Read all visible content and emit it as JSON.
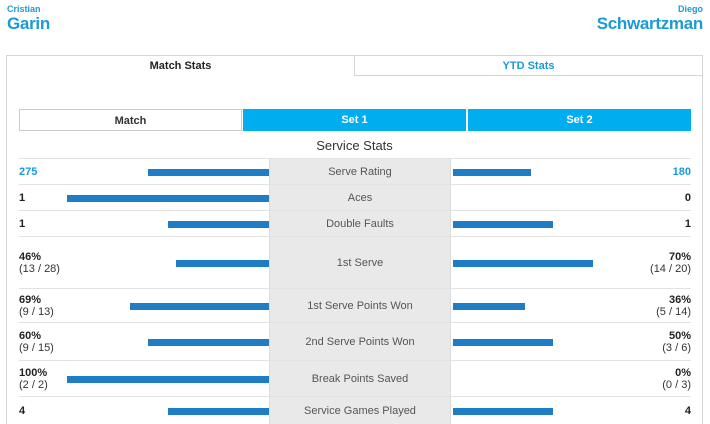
{
  "players": {
    "left": {
      "first": "Cristian",
      "last": "Garin"
    },
    "right": {
      "first": "Diego",
      "last": "Schwartzman"
    }
  },
  "top_tabs": [
    "Match Stats",
    "YTD Stats"
  ],
  "set_tabs": [
    "Match",
    "Set 1",
    "Set 2"
  ],
  "section_title": "Service Stats",
  "rows": [
    {
      "label": "Serve Rating",
      "left": {
        "value": "275",
        "sub": ""
      },
      "right": {
        "value": "180",
        "sub": ""
      },
      "left_fill": 0.6,
      "right_fill": 0.39,
      "blue_values": true
    },
    {
      "label": "Aces",
      "left": {
        "value": "1",
        "sub": ""
      },
      "right": {
        "value": "0",
        "sub": ""
      },
      "left_fill": 1.0,
      "right_fill": 0.0
    },
    {
      "label": "Double Faults",
      "left": {
        "value": "1",
        "sub": ""
      },
      "right": {
        "value": "1",
        "sub": ""
      },
      "left_fill": 0.5,
      "right_fill": 0.5
    },
    {
      "label": "1st Serve",
      "left": {
        "value": "46%",
        "sub": "(13 / 28)"
      },
      "right": {
        "value": "70%",
        "sub": "(14 / 20)"
      },
      "left_fill": 0.46,
      "right_fill": 0.7
    },
    {
      "label": "1st Serve Points Won",
      "left": {
        "value": "69%",
        "sub": "(9 / 13)"
      },
      "right": {
        "value": "36%",
        "sub": "(5 / 14)"
      },
      "left_fill": 0.69,
      "right_fill": 0.36
    },
    {
      "label": "2nd Serve Points Won",
      "left": {
        "value": "60%",
        "sub": "(9 / 15)"
      },
      "right": {
        "value": "50%",
        "sub": "(3 / 6)"
      },
      "left_fill": 0.6,
      "right_fill": 0.5
    },
    {
      "label": "Break Points Saved",
      "left": {
        "value": "100%",
        "sub": "(2 / 2)"
      },
      "right": {
        "value": "0%",
        "sub": "(0 / 3)"
      },
      "left_fill": 1.0,
      "right_fill": 0.0
    },
    {
      "label": "Service Games Played",
      "left": {
        "value": "4",
        "sub": ""
      },
      "right": {
        "value": "4",
        "sub": ""
      },
      "left_fill": 0.5,
      "right_fill": 0.5
    }
  ],
  "colors": {
    "accent": "#1a9ad6",
    "tab_active": "#00aeef",
    "bar": "#1f7dc6"
  }
}
